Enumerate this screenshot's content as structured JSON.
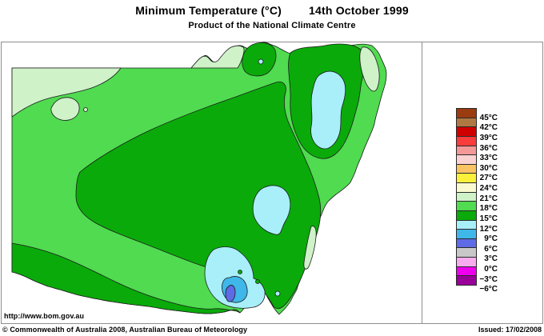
{
  "header": {
    "title": "Minimum Temperature (°C)",
    "date": "14th October 1999",
    "subtitle": "Product of the National Climate Centre"
  },
  "footer": {
    "url": "http://www.bom.gov.au",
    "copyright": "© Commonwealth of Australia 2008, Australian Bureau of Meteorology",
    "issued": "Issued: 17/02/2008"
  },
  "palette": {
    "brown45": "#9a3b10",
    "brown42": "#ae7943",
    "darkred39": "#d10000",
    "red36": "#fb3c3c",
    "salmon33": "#f59898",
    "pink30": "#fad2d2",
    "orange27": "#fac464",
    "yellow24": "#fbf13b",
    "paleyellow21": "#fafad0",
    "palegreen18": "#cff2c9",
    "green15": "#50db50",
    "green12": "#0aaa0a",
    "cyan9": "#a8effa",
    "blue6": "#3fb7e8",
    "violet3": "#5e6ae6",
    "gray0": "#c8c8c8",
    "pinkm3": "#f8acef",
    "magentam6": "#ee00ee",
    "purplebelow": "#990099",
    "sea": "#ffffff",
    "frame": "#8f8f8f",
    "contour": "#1c1c1c"
  },
  "legend": {
    "colors": [
      "#9a3b10",
      "#ae7943",
      "#d10000",
      "#fb3c3c",
      "#f59898",
      "#fad2d2",
      "#fac464",
      "#fbf13b",
      "#fafad0",
      "#cff2c9",
      "#50db50",
      "#0aaa0a",
      "#a8effa",
      "#3fb7e8",
      "#5e6ae6",
      "#c8c8c8",
      "#f8acef",
      "#ee00ee",
      "#990099"
    ],
    "labels": [
      "45°C",
      "42°C",
      "39°C",
      "36°C",
      "33°C",
      "30°C",
      "27°C",
      "24°C",
      "21°C",
      "18°C",
      "15°C",
      "12°C",
      "9°C",
      "6°C",
      "3°C",
      "0°C",
      "−3°C",
      "−6°C"
    ]
  },
  "map": {
    "bands_visible_on_map": [
      "18-21°C pale green",
      "15-18°C light green",
      "12-15°C green",
      "9-12°C cyan",
      "6-9°C sky blue",
      "3-6°C blue-violet"
    ]
  }
}
